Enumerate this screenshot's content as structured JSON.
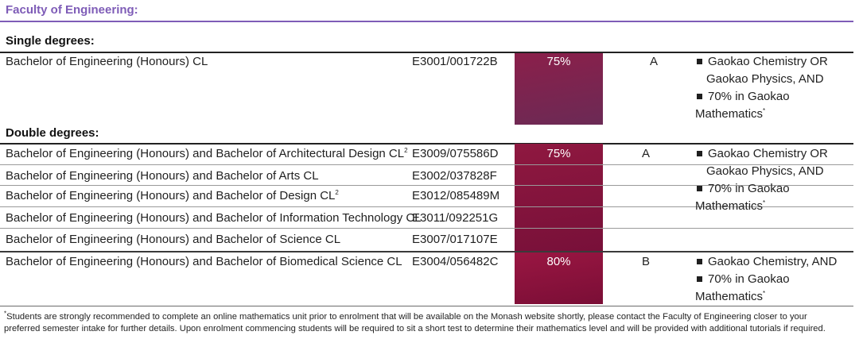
{
  "faculty": {
    "title": "Faculty of Engineering:"
  },
  "sections": {
    "single": {
      "heading": "Single degrees:"
    },
    "double": {
      "heading": "Double degrees:"
    }
  },
  "rows": {
    "r1": {
      "name": "Bachelor of Engineering (Honours)  CL",
      "code": "E3001/001722B"
    },
    "r2": {
      "name": "Bachelor of Engineering (Honours) and Bachelor of Architectural Design  CL",
      "sup": "2",
      "code": "E3009/075586D"
    },
    "r3": {
      "name": "Bachelor of Engineering (Honours) and Bachelor of Arts  CL",
      "code": "E3002/037828F"
    },
    "r4": {
      "name": "Bachelor of Engineering (Honours) and Bachelor of Design  CL",
      "sup": "2",
      "code": "E3012/085489M"
    },
    "r5": {
      "name": "Bachelor of Engineering (Honours) and Bachelor of Information Technology  CL",
      "code": "E3011/092251G"
    },
    "r6": {
      "name": "Bachelor of Engineering (Honours) and Bachelor of Science  CL",
      "code": "E3007/017107E"
    },
    "r7": {
      "name": "Bachelor of Engineering (Honours) and Bachelor of Biomedical Science  CL",
      "code": "E3004/056482C"
    }
  },
  "groups": {
    "g1": {
      "atar": "75%",
      "group": "A",
      "req1a": "Gaokao Chemistry OR",
      "req1b": "Gaokao Physics, AND",
      "req2a": "70% in Gaokao",
      "req2b": "Mathematics",
      "star": "*"
    },
    "g2": {
      "atar": "75%",
      "group": "A",
      "req1a": "Gaokao Chemistry OR",
      "req1b": "Gaokao Physics, AND",
      "req2a": "70% in Gaokao",
      "req2b": "Mathematics",
      "star": "*"
    },
    "g3": {
      "atar": "80%",
      "group": "B",
      "req1a": "Gaokao Chemistry, AND",
      "req2a": "70% in Gaokao",
      "req2b": "Mathematics",
      "star": "*"
    }
  },
  "footnote": {
    "star": "*",
    "line1": "Students are strongly recommended to complete an online mathematics unit prior to enrolment that will be available on the Monash website shortly, please contact the Faculty of Engineering closer to your",
    "line2": "preferred semester intake for further details. Upon enrolment commencing students will be required to sit a short test to determine their mathematics level and will be provided with additional tutorials if required."
  },
  "colors": {
    "heading_purple": "#7e5cb7",
    "band_maroon": "#8b1f4a"
  }
}
